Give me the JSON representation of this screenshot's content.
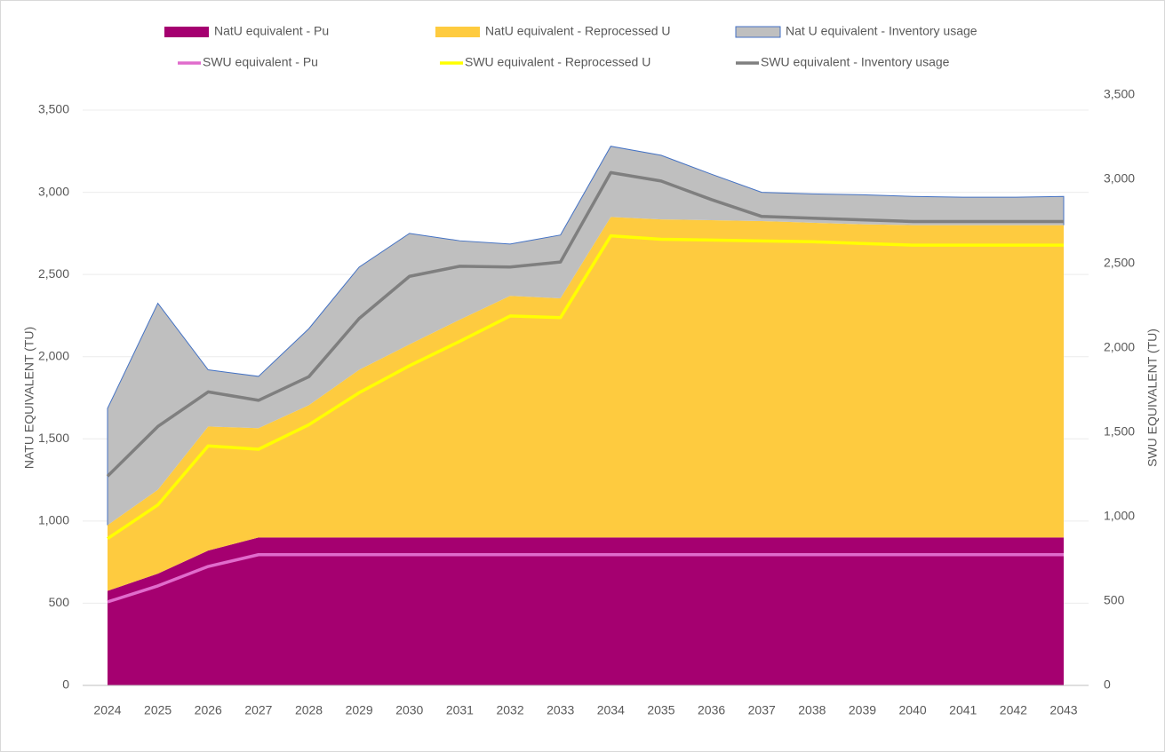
{
  "chart_data": {
    "type": "area",
    "stacked": true,
    "categories": [
      "2024",
      "2025",
      "2026",
      "2027",
      "2028",
      "2029",
      "2030",
      "2031",
      "2032",
      "2033",
      "2034",
      "2035",
      "2036",
      "2037",
      "2038",
      "2039",
      "2040",
      "2041",
      "2042",
      "2043"
    ],
    "ylabel": "NATU EQUIVALENT (TU)",
    "y2label": "SWU EQUIVALENT (TU)",
    "ylim": [
      0,
      3500
    ],
    "yticks": [
      0,
      500,
      {
        "value": 1000,
        "label": "1,000"
      },
      {
        "value": 1500,
        "label": "1,500"
      },
      {
        "value": 2000,
        "label": "2,000"
      },
      {
        "value": 2500,
        "label": "2,500"
      },
      {
        "value": 3000,
        "label": "3,000"
      },
      {
        "value": 3500,
        "label": "3,500"
      }
    ],
    "y2lim": [
      0,
      3500
    ],
    "y2ticks": [
      0,
      500,
      {
        "value": 1000,
        "label": "1,000"
      },
      {
        "value": 1500,
        "label": "1,500"
      },
      {
        "value": 2000,
        "label": "2,000"
      },
      {
        "value": 2500,
        "label": "2,500"
      },
      {
        "value": 3000,
        "label": "3,000"
      },
      {
        "value": 3500,
        "label": "3,500"
      }
    ],
    "grid": true,
    "legend": "top",
    "series": [
      {
        "name": "NatU equivalent - Pu",
        "type": "area",
        "color": "#a50070",
        "values": [
          575,
          680,
          820,
          900,
          900,
          900,
          900,
          900,
          900,
          900,
          900,
          900,
          900,
          900,
          900,
          900,
          900,
          900,
          900,
          900
        ]
      },
      {
        "name": "NatU equivalent - Reprocessed U",
        "type": "area",
        "color": "#fecb3f",
        "values": [
          400,
          510,
          755,
          665,
          805,
          1020,
          1175,
          1325,
          1470,
          1455,
          1950,
          1935,
          1930,
          1925,
          1915,
          1905,
          1900,
          1900,
          1900,
          1900
        ]
      },
      {
        "name": "Nat U equivalent - Inventory usage",
        "type": "area",
        "color": "#bfbfbf",
        "edge_color": "#4472c4",
        "values": [
          710,
          1135,
          345,
          315,
          465,
          625,
          675,
          480,
          315,
          385,
          430,
          390,
          280,
          175,
          175,
          180,
          175,
          170,
          170,
          175
        ]
      },
      {
        "name": "SWU equivalent - Pu",
        "type": "line",
        "axis": "y2",
        "color": "#e06ccc",
        "values": [
          495,
          590,
          705,
          775,
          775,
          775,
          775,
          775,
          775,
          775,
          775,
          775,
          775,
          775,
          775,
          775,
          775,
          775,
          775,
          775
        ]
      },
      {
        "name": "SWU equivalent - Reprocessed U",
        "type": "line",
        "axis": "y2",
        "color": "#ffff00",
        "values": [
          870,
          1070,
          1420,
          1400,
          1545,
          1735,
          1895,
          2040,
          2190,
          2180,
          2665,
          2645,
          2640,
          2635,
          2630,
          2620,
          2610,
          2610,
          2610,
          2610
        ]
      },
      {
        "name": "SWU equivalent - Inventory usage",
        "type": "line",
        "axis": "y2",
        "color": "#7f7f7f",
        "values": [
          1240,
          1535,
          1740,
          1690,
          1830,
          2175,
          2425,
          2485,
          2480,
          2510,
          3040,
          2990,
          2880,
          2780,
          2770,
          2760,
          2750,
          2750,
          2750,
          2750
        ]
      }
    ]
  }
}
